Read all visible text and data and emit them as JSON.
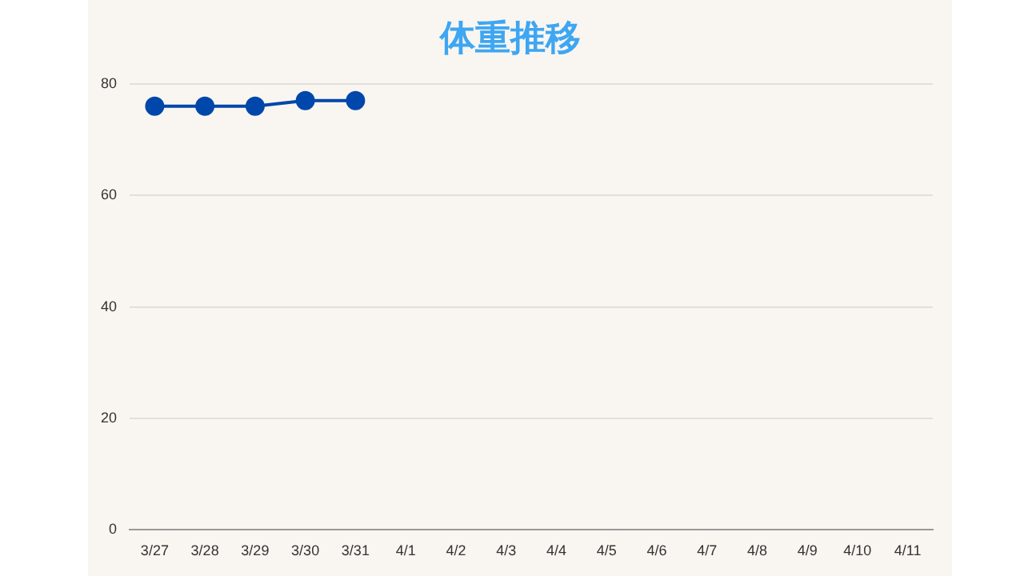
{
  "chart_data": {
    "type": "line",
    "title": "体重推移",
    "categories": [
      "3/27",
      "3/28",
      "3/29",
      "3/30",
      "3/31",
      "4/1",
      "4/2",
      "4/3",
      "4/4",
      "4/5",
      "4/6",
      "4/7",
      "4/8",
      "4/9",
      "4/10",
      "4/11"
    ],
    "series": [
      {
        "color": "#0047ab",
        "values": [
          76,
          76,
          76,
          77,
          77,
          null,
          null,
          null,
          null,
          null,
          null,
          null,
          null,
          null,
          null,
          null
        ]
      }
    ],
    "ylim": [
      0,
      80
    ],
    "yticks": [
      0,
      20,
      40,
      60,
      80
    ],
    "grid": "y",
    "legend": false,
    "marker": "circle",
    "line_style": "solid"
  }
}
